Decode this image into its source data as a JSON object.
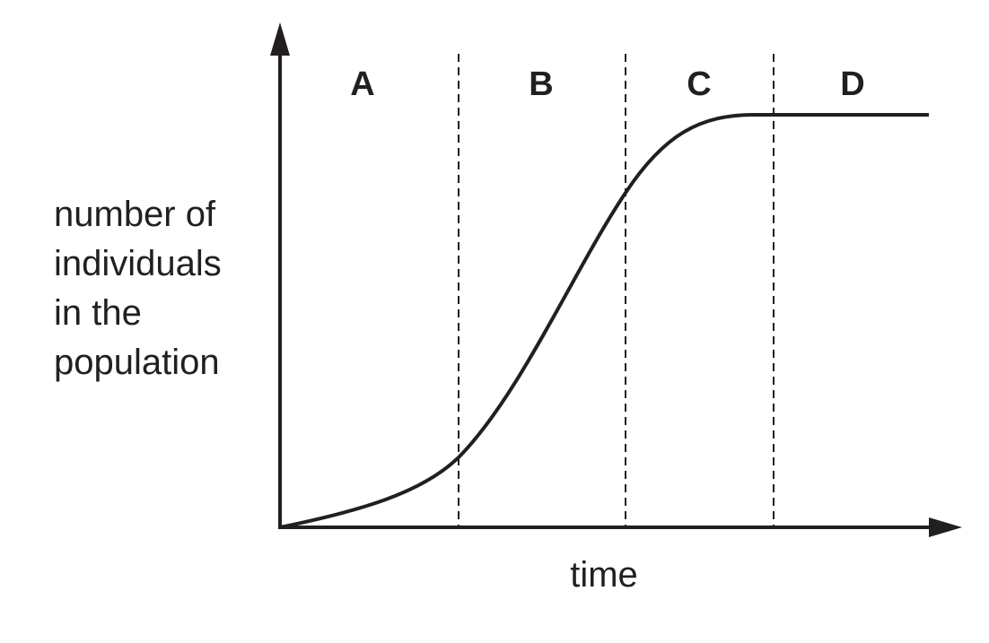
{
  "y_axis_label": [
    "number of",
    "individuals",
    "in the",
    "population"
  ],
  "x_axis_label": "time",
  "regions": [
    "A",
    "B",
    "C",
    "D"
  ]
}
